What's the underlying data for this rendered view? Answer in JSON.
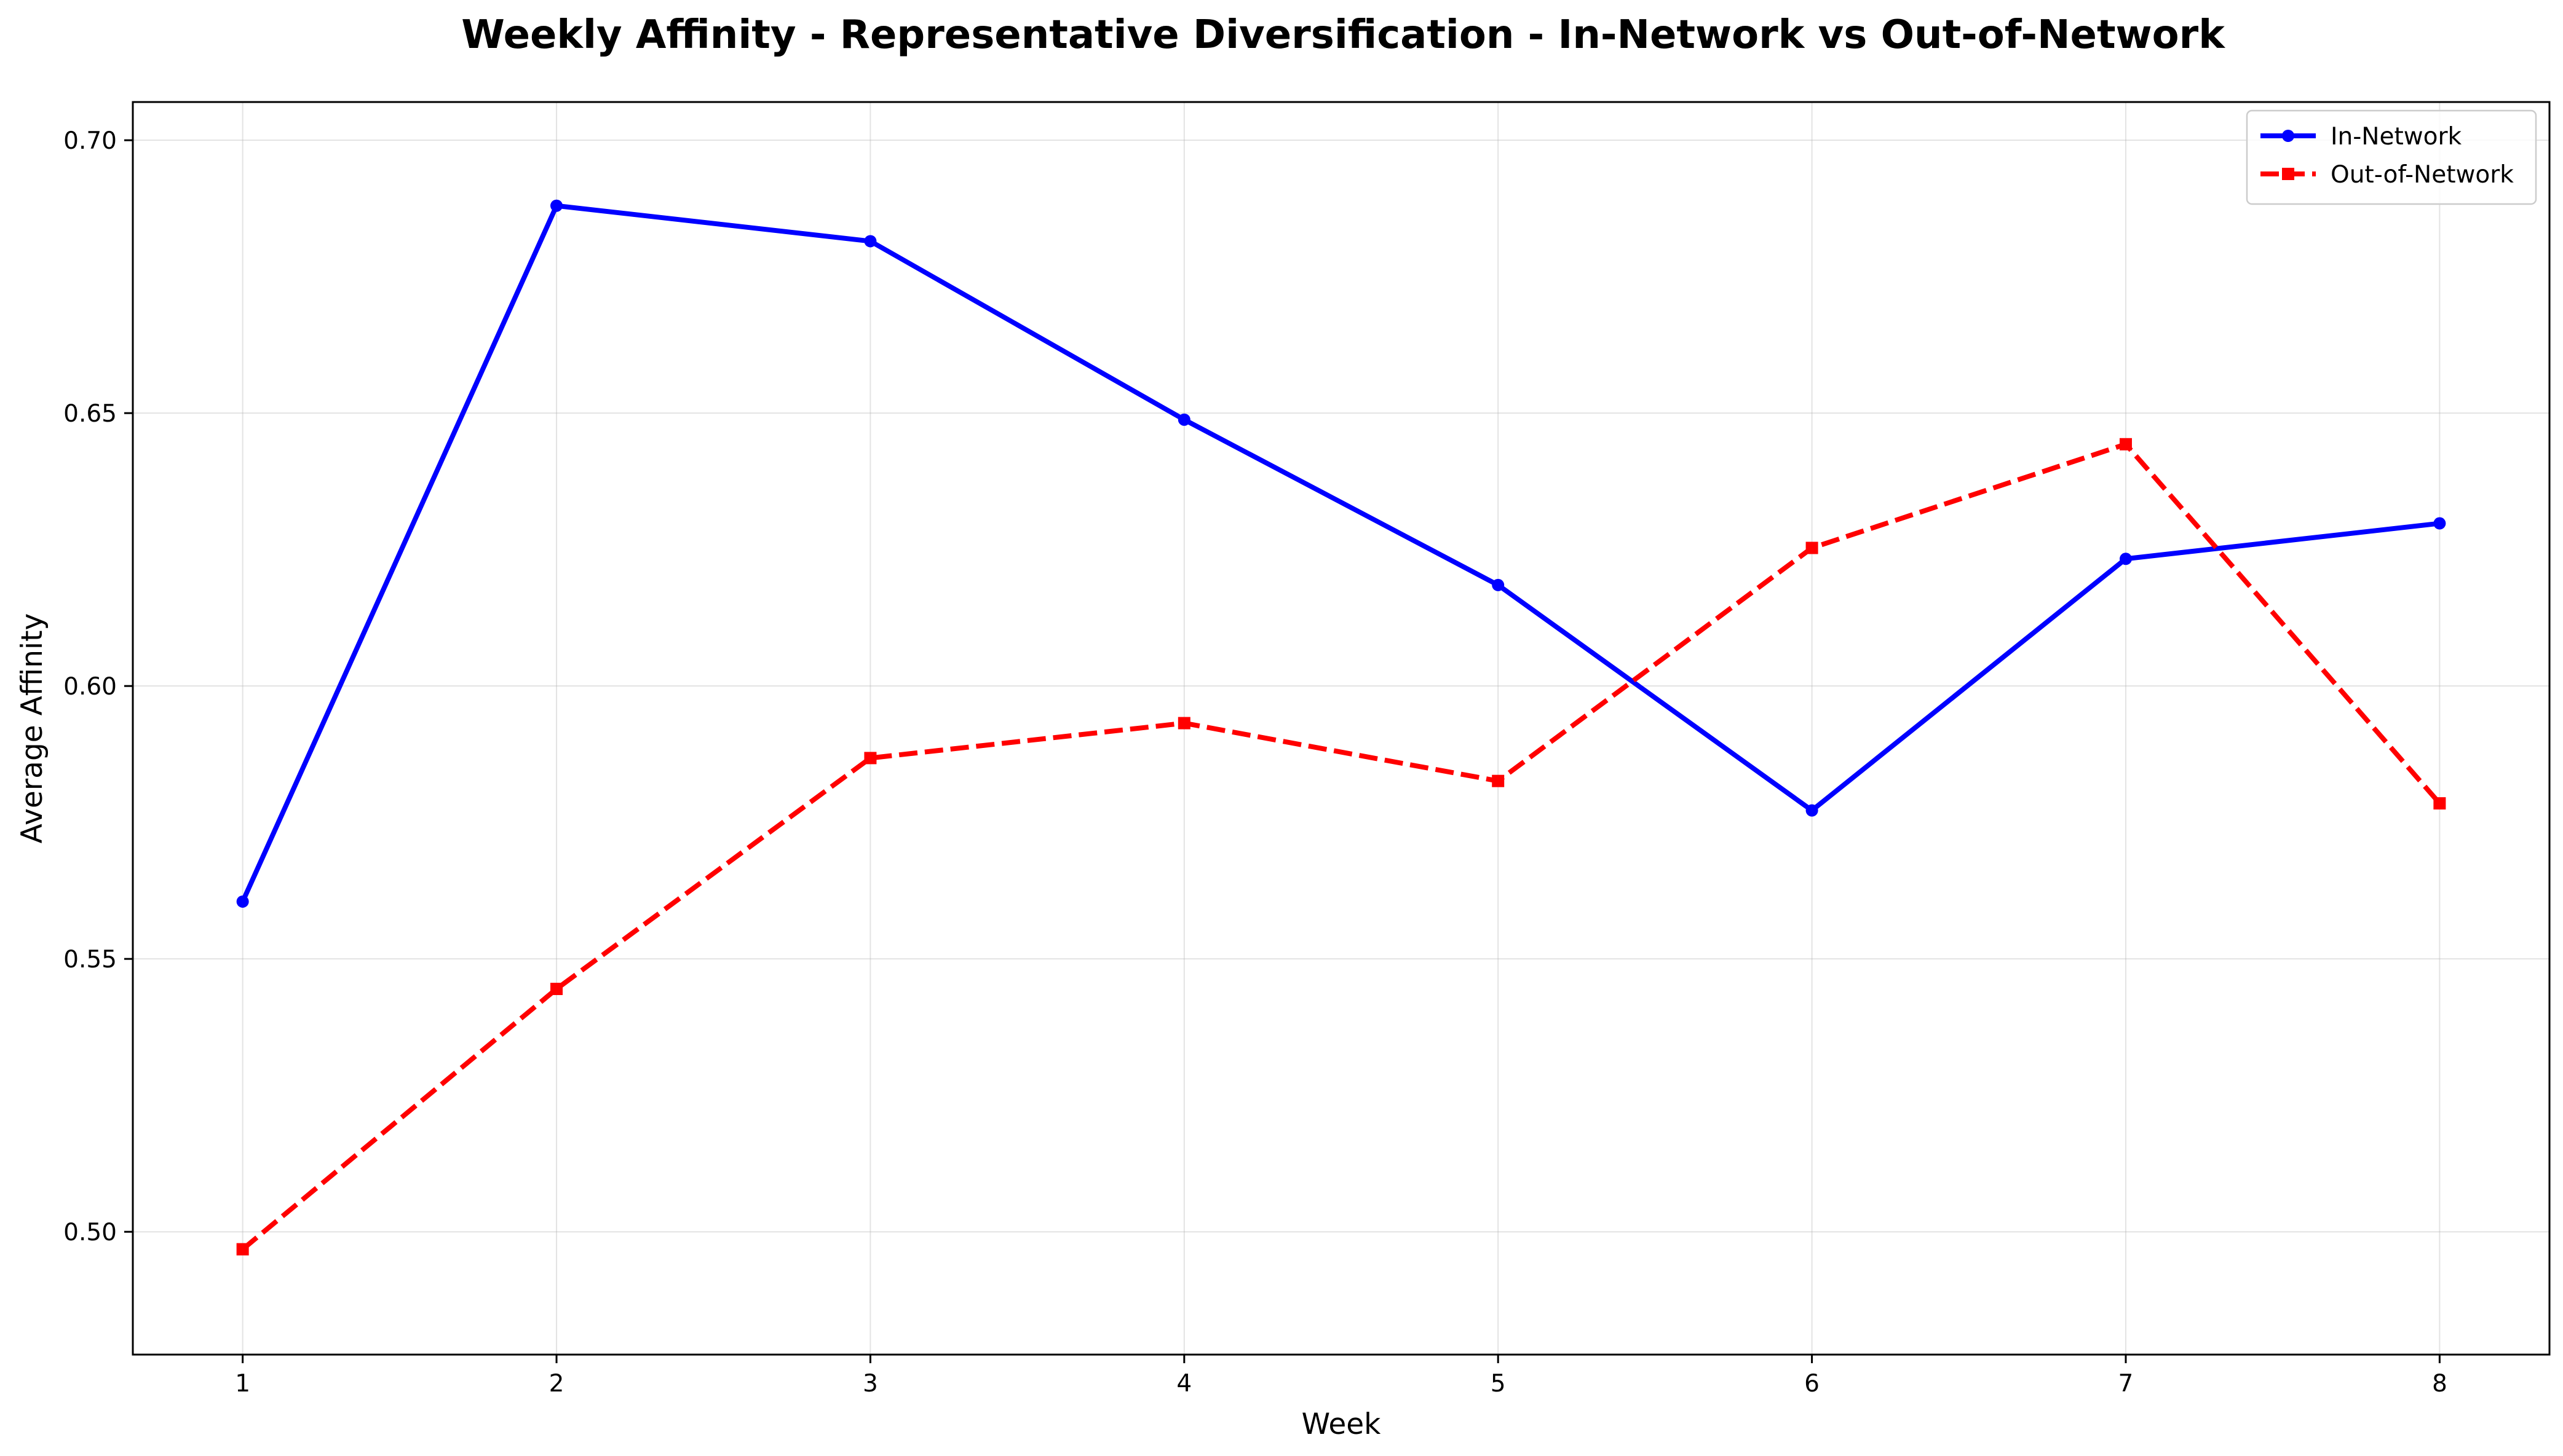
{
  "chart_data": {
    "type": "line",
    "title": "Weekly Affinity - Representative Diversification - In-Network vs Out-of-Network",
    "xlabel": "Week",
    "ylabel": "Average Affinity",
    "x": [
      1,
      2,
      3,
      4,
      5,
      6,
      7,
      8
    ],
    "x_ticks": [
      "1",
      "2",
      "3",
      "4",
      "5",
      "6",
      "7",
      "8"
    ],
    "y_ticks": [
      "0.50",
      "0.55",
      "0.60",
      "0.65",
      "0.70"
    ],
    "y_tick_values": [
      0.5,
      0.55,
      0.6,
      0.65,
      0.7
    ],
    "xlim": [
      0.65,
      8.35
    ],
    "ylim": [
      0.4775,
      0.707
    ],
    "grid": true,
    "legend_position": "top-right",
    "series": [
      {
        "name": "In-Network",
        "values": [
          0.5605,
          0.688,
          0.6815,
          0.6488,
          0.6185,
          0.5772,
          0.6233,
          0.6298
        ],
        "color": "#0000ff",
        "line_style": "solid",
        "marker": "circle"
      },
      {
        "name": "Out-of-Network",
        "values": [
          0.4968,
          0.5445,
          0.5868,
          0.5932,
          0.5826,
          0.6253,
          0.6443,
          0.5785
        ],
        "color": "#ff0000",
        "line_style": "dashed",
        "marker": "square"
      }
    ]
  }
}
